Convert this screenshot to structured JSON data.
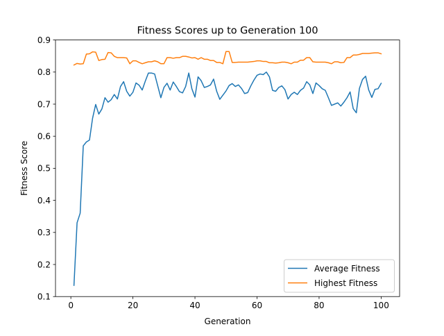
{
  "colors": {
    "average": "#1f77b4",
    "highest": "#ff7f0e",
    "axes": "#000000",
    "background": "#ffffff"
  },
  "chart_data": {
    "type": "line",
    "title": "Fitness Scores up to Generation 100",
    "xlabel": "Generation",
    "ylabel": "Fitness Score",
    "xlim": [
      -4.95,
      105.95
    ],
    "ylim": [
      0.1,
      0.9
    ],
    "xticks": [
      0,
      20,
      40,
      60,
      80,
      100
    ],
    "yticks": [
      0.1,
      0.2,
      0.3,
      0.4,
      0.5,
      0.6,
      0.7,
      0.8,
      0.9
    ],
    "grid": false,
    "legend_position": "lower-right",
    "x": [
      1,
      2,
      3,
      4,
      5,
      6,
      7,
      8,
      9,
      10,
      11,
      12,
      13,
      14,
      15,
      16,
      17,
      18,
      19,
      20,
      21,
      22,
      23,
      24,
      25,
      26,
      27,
      28,
      29,
      30,
      31,
      32,
      33,
      34,
      35,
      36,
      37,
      38,
      39,
      40,
      41,
      42,
      43,
      44,
      45,
      46,
      47,
      48,
      49,
      50,
      51,
      52,
      53,
      54,
      55,
      56,
      57,
      58,
      59,
      60,
      61,
      62,
      63,
      64,
      65,
      66,
      67,
      68,
      69,
      70,
      71,
      72,
      73,
      74,
      75,
      76,
      77,
      78,
      79,
      80,
      81,
      82,
      83,
      84,
      85,
      86,
      87,
      88,
      89,
      90,
      91,
      92,
      93,
      94,
      95,
      96,
      97,
      98,
      99,
      100
    ],
    "series": [
      {
        "name": "Average Fitness",
        "color": "#1f77b4",
        "values": [
          0.135,
          0.33,
          0.36,
          0.57,
          0.582,
          0.588,
          0.656,
          0.699,
          0.669,
          0.685,
          0.72,
          0.706,
          0.714,
          0.73,
          0.716,
          0.755,
          0.77,
          0.74,
          0.725,
          0.737,
          0.766,
          0.759,
          0.744,
          0.772,
          0.797,
          0.797,
          0.794,
          0.757,
          0.72,
          0.752,
          0.765,
          0.744,
          0.769,
          0.755,
          0.739,
          0.735,
          0.755,
          0.797,
          0.748,
          0.722,
          0.785,
          0.773,
          0.752,
          0.755,
          0.76,
          0.778,
          0.74,
          0.715,
          0.728,
          0.741,
          0.758,
          0.764,
          0.755,
          0.76,
          0.749,
          0.733,
          0.736,
          0.757,
          0.775,
          0.79,
          0.794,
          0.792,
          0.8,
          0.785,
          0.743,
          0.74,
          0.752,
          0.757,
          0.745,
          0.716,
          0.73,
          0.737,
          0.73,
          0.743,
          0.75,
          0.77,
          0.76,
          0.733,
          0.766,
          0.758,
          0.748,
          0.743,
          0.72,
          0.696,
          0.7,
          0.704,
          0.694,
          0.706,
          0.72,
          0.738,
          0.686,
          0.673,
          0.749,
          0.777,
          0.787,
          0.744,
          0.721,
          0.746,
          0.748,
          0.765
        ]
      },
      {
        "name": "Highest Fitness",
        "color": "#ff7f0e",
        "values": [
          0.822,
          0.827,
          0.825,
          0.826,
          0.856,
          0.857,
          0.863,
          0.862,
          0.836,
          0.839,
          0.84,
          0.861,
          0.86,
          0.849,
          0.845,
          0.845,
          0.845,
          0.844,
          0.826,
          0.835,
          0.835,
          0.83,
          0.826,
          0.829,
          0.832,
          0.832,
          0.835,
          0.832,
          0.826,
          0.826,
          0.845,
          0.845,
          0.843,
          0.845,
          0.845,
          0.849,
          0.849,
          0.847,
          0.844,
          0.845,
          0.84,
          0.845,
          0.84,
          0.84,
          0.836,
          0.836,
          0.83,
          0.83,
          0.826,
          0.864,
          0.864,
          0.83,
          0.83,
          0.831,
          0.831,
          0.831,
          0.831,
          0.832,
          0.833,
          0.835,
          0.835,
          0.833,
          0.833,
          0.829,
          0.829,
          0.828,
          0.829,
          0.831,
          0.831,
          0.829,
          0.826,
          0.831,
          0.831,
          0.837,
          0.837,
          0.845,
          0.845,
          0.832,
          0.831,
          0.831,
          0.831,
          0.831,
          0.829,
          0.826,
          0.832,
          0.832,
          0.829,
          0.83,
          0.845,
          0.845,
          0.853,
          0.853,
          0.855,
          0.858,
          0.858,
          0.858,
          0.859,
          0.86,
          0.86,
          0.857
        ]
      }
    ]
  }
}
